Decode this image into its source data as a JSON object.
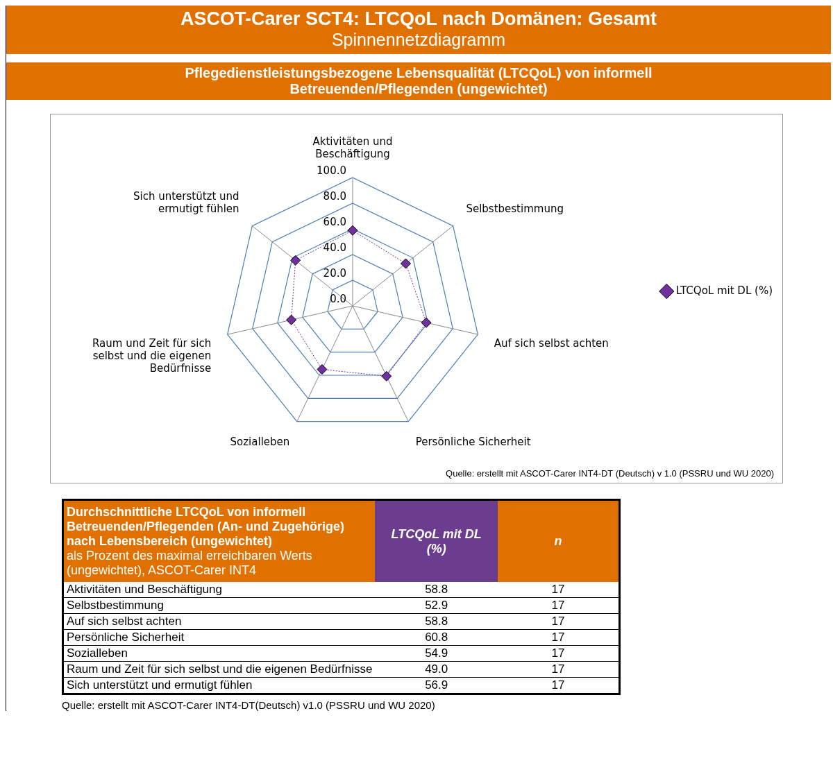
{
  "chart_data": [
    {
      "type": "radar",
      "title": "ASCOT-Carer SCT4: LTCQoL nach Domänen: Gesamt",
      "subtitle": "Spinnennetzdiagramm",
      "annotations": [
        "Pflegedienstleistungsbezogene Lebensqualität (LTCQoL) von informell Betreuenden/Pflegenden (ungewichtet)",
        "Quelle: erstellt mit ASCOT-Carer INT4-DT (Deutsch) v 1.0 (PSSRU und WU 2020)"
      ],
      "categories": [
        "Aktivitäten und Beschäftigung",
        "Selbstbestimmung",
        "Auf sich selbst achten",
        "Persönliche Sicherheit",
        "Sozialleben",
        "Raum und Zeit für sich selbst und die eigenen Bedürfnisse",
        "Sich unterstützt und ermutigt fühlen"
      ],
      "series": [
        {
          "name": "LTCQoL mit DL (%)",
          "color": "#7030a0",
          "values": [
            58.8,
            52.9,
            58.8,
            60.8,
            54.9,
            49.0,
            56.9
          ]
        }
      ],
      "ylim": [
        0,
        100
      ],
      "yticks": [
        {
          "value": 0,
          "label": "0.0"
        },
        {
          "value": 20,
          "label": "20.0"
        },
        {
          "value": 40,
          "label": "40.0"
        },
        {
          "value": 60,
          "label": "60.0"
        },
        {
          "value": 80,
          "label": "80.0"
        },
        {
          "value": 100,
          "label": "100.0"
        }
      ],
      "grid": true,
      "legend": "right",
      "marker": "diamond",
      "line_style": "dotted"
    },
    {
      "type": "other",
      "title": "Durchschnittliche LTCQoL von informell Betreuenden/Pflegenden (An- und Zugehörige) nach Lebensbereich (ungewichtet)",
      "subtitle": "als Prozent des maximal erreichbaren Werts (ungewichtet), ASCOT-Carer INT4",
      "annotations": [
        "Quelle: erstellt mit ASCOT-Carer INT4-DT(Deutsch) v1.0 (PSSRU und WU 2020)"
      ],
      "categories": [
        "Aktivitäten und Beschäftigung",
        "Selbstbestimmung",
        "Auf sich selbst achten",
        "Persönliche Sicherheit",
        "Sozialleben",
        "Raum und Zeit für sich selbst und die eigenen Bedürfnisse",
        "Sich unterstützt und ermutigt fühlen"
      ],
      "data_labels": true,
      "series": [
        {
          "name": "LTCQoL mit DL (%)",
          "values": [
            58.8,
            52.9,
            58.8,
            60.8,
            54.9,
            49.0,
            56.9
          ],
          "value_labels": [
            "58.8",
            "52.9",
            "58.8",
            "60.8",
            "54.9",
            "49.0",
            "56.9"
          ]
        },
        {
          "name": "n",
          "values": [
            17,
            17,
            17,
            17,
            17,
            17,
            17
          ]
        }
      ]
    }
  ]
}
